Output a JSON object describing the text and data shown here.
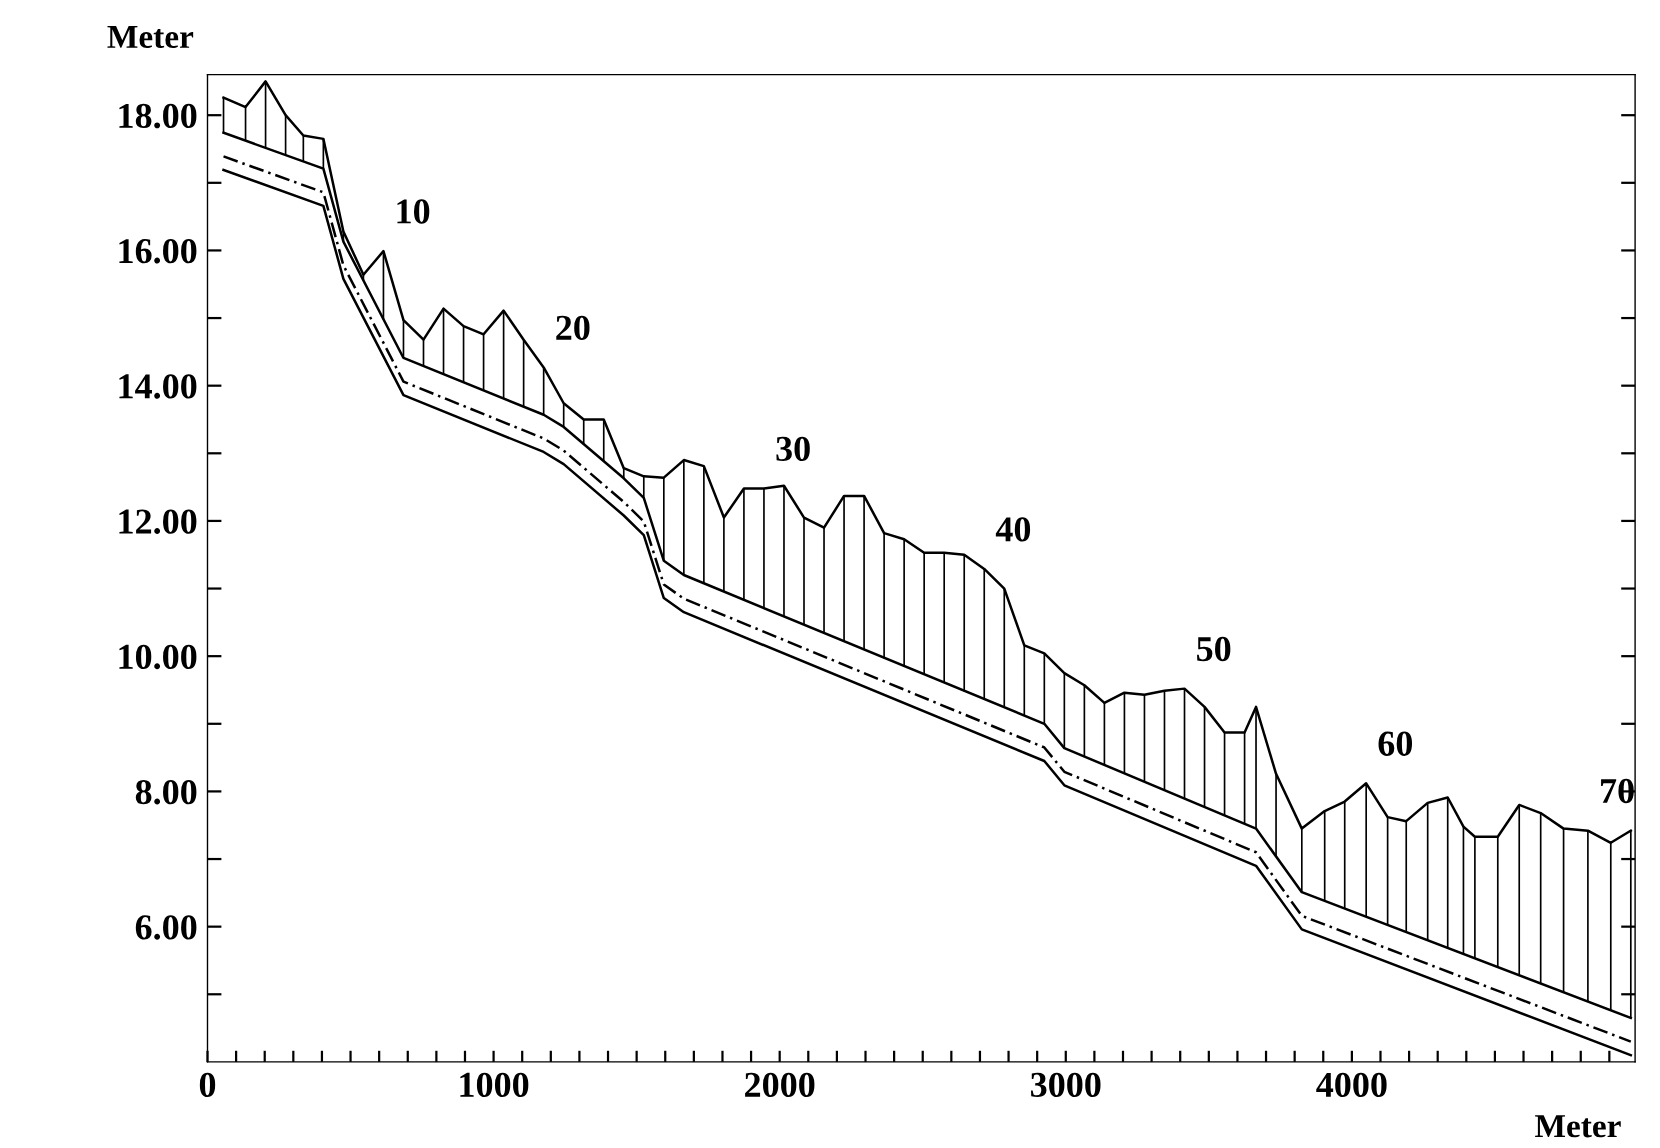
{
  "chart_data": {
    "type": "line",
    "ylabel": "Meter",
    "xlabel": "Meter",
    "series": [
      {
        "color": "#000000",
        "line_style": "solid",
        "errors": [
          [
            17.74,
            18.26
          ],
          [
            17.62,
            18.12
          ],
          [
            17.52,
            18.5
          ],
          [
            17.41,
            18.0
          ],
          [
            17.32,
            17.7
          ],
          [
            17.21,
            17.65
          ],
          [
            16.13,
            16.28
          ],
          [
            15.56,
            15.64
          ],
          [
            14.98,
            15.99
          ],
          [
            14.41,
            14.97
          ],
          [
            14.29,
            14.68
          ],
          [
            14.17,
            15.14
          ],
          [
            14.05,
            14.88
          ],
          [
            13.93,
            14.76
          ],
          [
            13.81,
            15.11
          ],
          [
            13.69,
            14.68
          ],
          [
            13.57,
            14.27
          ],
          [
            13.39,
            13.74
          ],
          [
            13.14,
            13.5
          ],
          [
            12.88,
            13.5
          ],
          [
            12.63,
            12.78
          ],
          [
            12.34,
            12.66
          ],
          [
            11.41,
            12.64
          ],
          [
            11.2,
            12.9
          ],
          [
            11.08,
            12.81
          ],
          [
            10.96,
            12.05
          ],
          [
            10.83,
            12.48
          ],
          [
            10.71,
            12.48
          ],
          [
            10.59,
            12.52
          ],
          [
            10.47,
            12.05
          ],
          [
            10.34,
            11.9
          ],
          [
            10.22,
            12.37
          ],
          [
            10.1,
            12.37
          ],
          [
            9.97,
            11.82
          ],
          [
            9.85,
            11.73
          ],
          [
            9.73,
            11.53
          ],
          [
            9.61,
            11.53
          ],
          [
            9.48,
            11.5
          ],
          [
            9.36,
            11.29
          ],
          [
            9.24,
            11.0
          ],
          [
            9.12,
            10.16
          ],
          [
            9.0,
            10.04
          ],
          [
            8.64,
            9.75
          ],
          [
            8.52,
            9.57
          ],
          [
            8.39,
            9.31
          ],
          [
            8.27,
            9.46
          ],
          [
            8.14,
            9.43
          ],
          [
            8.02,
            9.49
          ],
          [
            7.89,
            9.52
          ],
          [
            7.77,
            9.25
          ],
          [
            7.64,
            8.87
          ],
          [
            7.52,
            8.87
          ],
          [
            7.45,
            9.25
          ],
          [
            7.04,
            8.26
          ],
          [
            6.51,
            7.45
          ],
          [
            6.38,
            7.71
          ],
          [
            6.27,
            7.85
          ],
          [
            6.15,
            8.12
          ],
          [
            6.02,
            7.62
          ],
          [
            5.92,
            7.56
          ],
          [
            5.8,
            7.83
          ],
          [
            5.69,
            7.91
          ],
          [
            5.6,
            7.48
          ],
          [
            5.53,
            7.33
          ],
          [
            5.4,
            7.33
          ],
          [
            5.28,
            7.8
          ],
          [
            5.16,
            7.68
          ],
          [
            5.03,
            7.45
          ],
          [
            4.89,
            7.42
          ],
          [
            4.76,
            7.24
          ],
          [
            4.65,
            7.42
          ]
        ],
        "x": [
          56,
          133,
          203,
          273,
          335,
          405,
          475,
          545,
          615,
          685,
          755,
          825,
          895,
          965,
          1035,
          1105,
          1175,
          1245,
          1315,
          1385,
          1455,
          1525,
          1595,
          1665,
          1735,
          1805,
          1875,
          1945,
          2015,
          2085,
          2155,
          2225,
          2295,
          2365,
          2435,
          2505,
          2575,
          2645,
          2715,
          2785,
          2855,
          2925,
          2995,
          3065,
          3135,
          3205,
          3275,
          3345,
          3415,
          3485,
          3555,
          3625,
          3665,
          3735,
          3825,
          3905,
          3975,
          4050,
          4125,
          4190,
          4265,
          4335,
          4390,
          4430,
          4510,
          4585,
          4660,
          4740,
          4825,
          4905,
          4975
        ],
        "values": [
          18.26,
          18.12,
          18.5,
          18.0,
          17.7,
          17.65,
          16.28,
          15.64,
          15.99,
          14.97,
          14.68,
          15.14,
          14.88,
          14.76,
          15.11,
          14.68,
          14.27,
          13.74,
          13.5,
          13.5,
          12.78,
          12.66,
          12.64,
          12.9,
          12.81,
          12.05,
          12.48,
          12.48,
          12.52,
          12.05,
          11.9,
          12.37,
          12.37,
          11.82,
          11.73,
          11.53,
          11.53,
          11.5,
          11.29,
          11.0,
          10.16,
          10.04,
          9.75,
          9.57,
          9.31,
          9.46,
          9.43,
          9.49,
          9.52,
          9.25,
          8.87,
          8.87,
          9.25,
          8.26,
          7.45,
          7.71,
          7.85,
          8.12,
          7.62,
          7.56,
          7.83,
          7.91,
          7.48,
          7.33,
          7.33,
          7.8,
          7.68,
          7.45,
          7.42,
          7.24,
          7.42
        ]
      },
      {
        "color": "#000000",
        "line_style": "solid",
        "x": [
          56,
          405,
          475,
          685,
          1175,
          1245,
          1455,
          1525,
          1595,
          1665,
          2925,
          2995,
          3665,
          3825,
          4975
        ],
        "values": [
          17.74,
          17.21,
          16.13,
          14.41,
          13.57,
          13.39,
          12.63,
          12.34,
          11.41,
          11.2,
          9.0,
          8.64,
          7.45,
          6.51,
          4.65
        ]
      },
      {
        "color": "#000000",
        "line_style": "dashed",
        "x": [
          56,
          405,
          475,
          685,
          1175,
          1245,
          1455,
          1525,
          1595,
          1665,
          2925,
          2995,
          3665,
          3825,
          4975
        ],
        "values": [
          17.39,
          16.86,
          15.78,
          14.06,
          13.22,
          13.04,
          12.28,
          11.99,
          11.06,
          10.85,
          8.65,
          8.29,
          7.1,
          6.16,
          4.3
        ]
      },
      {
        "color": "#000000",
        "line_style": "solid",
        "x": [
          56,
          405,
          475,
          685,
          1175,
          1245,
          1455,
          1525,
          1595,
          1665,
          2925,
          2995,
          3665,
          3825,
          4975
        ],
        "values": [
          17.19,
          16.66,
          15.58,
          13.86,
          13.02,
          12.84,
          12.08,
          11.79,
          10.86,
          10.65,
          8.45,
          8.09,
          6.9,
          5.96,
          4.1
        ]
      }
    ],
    "xlim": [
      0,
      4990
    ],
    "ylim": [
      4.0,
      18.6
    ],
    "xticks": [
      0,
      {
        "value": 100,
        "label": null
      },
      {
        "value": 200,
        "label": null
      },
      {
        "value": 300,
        "label": null
      },
      {
        "value": 400,
        "label": null
      },
      {
        "value": 500,
        "label": null
      },
      {
        "value": 600,
        "label": null
      },
      {
        "value": 700,
        "label": null
      },
      {
        "value": 800,
        "label": null
      },
      {
        "value": 900,
        "label": null
      },
      1000,
      {
        "value": 1100,
        "label": null
      },
      {
        "value": 1200,
        "label": null
      },
      {
        "value": 1300,
        "label": null
      },
      {
        "value": 1400,
        "label": null
      },
      {
        "value": 1500,
        "label": null
      },
      {
        "value": 1600,
        "label": null
      },
      {
        "value": 1700,
        "label": null
      },
      {
        "value": 1800,
        "label": null
      },
      {
        "value": 1900,
        "label": null
      },
      2000,
      {
        "value": 2100,
        "label": null
      },
      {
        "value": 2200,
        "label": null
      },
      {
        "value": 2300,
        "label": null
      },
      {
        "value": 2400,
        "label": null
      },
      {
        "value": 2500,
        "label": null
      },
      {
        "value": 2600,
        "label": null
      },
      {
        "value": 2700,
        "label": null
      },
      {
        "value": 2800,
        "label": null
      },
      {
        "value": 2900,
        "label": null
      },
      3000,
      {
        "value": 3100,
        "label": null
      },
      {
        "value": 3200,
        "label": null
      },
      {
        "value": 3300,
        "label": null
      },
      {
        "value": 3400,
        "label": null
      },
      {
        "value": 3500,
        "label": null
      },
      {
        "value": 3600,
        "label": null
      },
      {
        "value": 3700,
        "label": null
      },
      {
        "value": 3800,
        "label": null
      },
      {
        "value": 3900,
        "label": null
      },
      4000,
      {
        "value": 4100,
        "label": null
      },
      {
        "value": 4200,
        "label": null
      },
      {
        "value": 4300,
        "label": null
      },
      {
        "value": 4400,
        "label": null
      },
      {
        "value": 4500,
        "label": null
      },
      {
        "value": 4600,
        "label": null
      },
      {
        "value": 4700,
        "label": null
      },
      {
        "value": 4800,
        "label": null
      },
      {
        "value": 4900,
        "label": null
      }
    ],
    "yticks": [
      {
        "value": 5,
        "label": null
      },
      {
        "value": 6,
        "label": "6.00"
      },
      {
        "value": 7,
        "label": null
      },
      {
        "value": 8,
        "label": "8.00"
      },
      {
        "value": 9,
        "label": null
      },
      {
        "value": 10,
        "label": "10.00"
      },
      {
        "value": 11,
        "label": null
      },
      {
        "value": 12,
        "label": "12.00"
      },
      {
        "value": 13,
        "label": null
      },
      {
        "value": 14,
        "label": "14.00"
      },
      {
        "value": 15,
        "label": null
      },
      {
        "value": 16,
        "label": "16.00"
      },
      {
        "value": 17,
        "label": null
      },
      {
        "value": 18,
        "label": "18.00"
      }
    ],
    "grid": false,
    "legend": false,
    "marker": "none",
    "annotations": [
      {
        "text": "10",
        "x": 615,
        "y": 15.99
      },
      {
        "text": "20",
        "x": 1175,
        "y": 14.27
      },
      {
        "text": "30",
        "x": 1945,
        "y": 12.48
      },
      {
        "text": "40",
        "x": 2715,
        "y": 11.29
      },
      {
        "text": "50",
        "x": 3415,
        "y": 9.52
      },
      {
        "text": "60",
        "x": 4050,
        "y": 8.12
      },
      {
        "text": "70",
        "x": 4825,
        "y": 7.42
      }
    ]
  }
}
